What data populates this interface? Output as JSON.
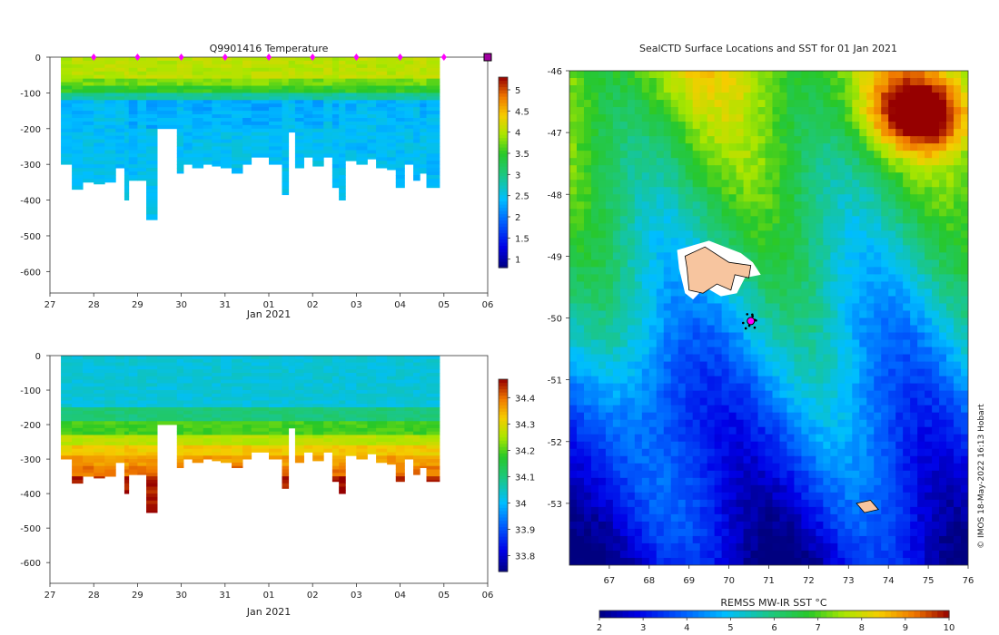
{
  "chart_data": [
    {
      "type": "heatmap",
      "title": "Q9901416  Temperature",
      "xlabel": "Jan 2021",
      "ylabel": "",
      "xticks": [
        "27",
        "28",
        "29",
        "30",
        "31",
        "01",
        "02",
        "03",
        "04",
        "05",
        "06"
      ],
      "xlim_days": [
        27,
        37
      ],
      "yticks": [
        0,
        -100,
        -200,
        -300,
        -400,
        -500,
        -600
      ],
      "ylim": [
        -660,
        0
      ],
      "surface_markers_days": [
        28,
        29,
        30,
        31,
        32,
        33,
        34,
        35,
        36
      ],
      "end_marker_day": 37,
      "colorbar": {
        "ticks": [
          1,
          1.5,
          2,
          2.5,
          3,
          3.5,
          4,
          4.5,
          5
        ],
        "range": [
          0.8,
          5.3
        ]
      },
      "profiles": [
        {
          "t": 27.25,
          "depth": 300
        },
        {
          "t": 27.5,
          "depth": 370
        },
        {
          "t": 27.75,
          "depth": 350
        },
        {
          "t": 28.0,
          "depth": 355
        },
        {
          "t": 28.25,
          "depth": 350
        },
        {
          "t": 28.5,
          "depth": 310
        },
        {
          "t": 28.7,
          "depth": 400
        },
        {
          "t": 28.8,
          "depth": 345
        },
        {
          "t": 29.0,
          "depth": 345
        },
        {
          "t": 29.2,
          "depth": 455
        },
        {
          "t": 29.45,
          "depth": 200
        },
        {
          "t": 29.9,
          "depth": 325
        },
        {
          "t": 30.05,
          "depth": 300
        },
        {
          "t": 30.25,
          "depth": 310
        },
        {
          "t": 30.5,
          "depth": 300
        },
        {
          "t": 30.7,
          "depth": 305
        },
        {
          "t": 30.9,
          "depth": 310
        },
        {
          "t": 31.15,
          "depth": 325
        },
        {
          "t": 31.4,
          "depth": 300
        },
        {
          "t": 31.6,
          "depth": 280
        },
        {
          "t": 32.0,
          "depth": 300
        },
        {
          "t": 32.3,
          "depth": 385
        },
        {
          "t": 32.45,
          "depth": 210
        },
        {
          "t": 32.6,
          "depth": 310
        },
        {
          "t": 32.8,
          "depth": 280
        },
        {
          "t": 33.0,
          "depth": 305
        },
        {
          "t": 33.25,
          "depth": 280
        },
        {
          "t": 33.45,
          "depth": 365
        },
        {
          "t": 33.6,
          "depth": 400
        },
        {
          "t": 33.75,
          "depth": 290
        },
        {
          "t": 34.0,
          "depth": 300
        },
        {
          "t": 34.25,
          "depth": 285
        },
        {
          "t": 34.45,
          "depth": 310
        },
        {
          "t": 34.7,
          "depth": 315
        },
        {
          "t": 34.9,
          "depth": 365
        },
        {
          "t": 35.1,
          "depth": 300
        },
        {
          "t": 35.3,
          "depth": 345
        },
        {
          "t": 35.45,
          "depth": 325
        },
        {
          "t": 35.6,
          "depth": 365
        }
      ]
    },
    {
      "type": "heatmap",
      "title": "",
      "xlabel": "Jan 2021",
      "ylabel": "",
      "xticks": [
        "27",
        "28",
        "29",
        "30",
        "31",
        "01",
        "02",
        "03",
        "04",
        "05",
        "06"
      ],
      "xlim_days": [
        27,
        37
      ],
      "yticks": [
        0,
        -100,
        -200,
        -300,
        -400,
        -500,
        -600
      ],
      "ylim": [
        -660,
        0
      ],
      "colorbar": {
        "ticks": [
          33.8,
          33.9,
          34,
          34.1,
          34.2,
          34.3,
          34.4
        ],
        "range": [
          33.74,
          34.47
        ]
      }
    },
    {
      "type": "heatmap",
      "title": "SealCTD Surface Locations and SST for 01 Jan 2021",
      "xticks": [
        "67",
        "68",
        "69",
        "70",
        "71",
        "72",
        "73",
        "74",
        "75",
        "76"
      ],
      "yticks": [
        "-46",
        "-47",
        "-48",
        "-49",
        "-50",
        "-51",
        "-52",
        "-53"
      ],
      "xlim": [
        66,
        76
      ],
      "ylim": [
        -54,
        -46
      ],
      "colorbar": {
        "label": "REMSS MW-IR SST °C",
        "ticks": [
          2,
          3,
          4,
          5,
          6,
          7,
          8,
          9,
          10
        ],
        "range": [
          2,
          10
        ]
      },
      "seal_position": {
        "lon": 70.55,
        "lat": -50.05
      },
      "credit": "© IMOS 18-May-2022 16:13 Hobart"
    }
  ]
}
